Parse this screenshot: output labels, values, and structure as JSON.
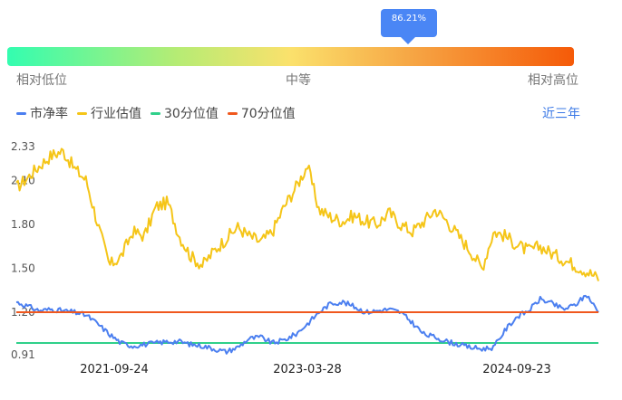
{
  "tooltip": {
    "value": "86.21%"
  },
  "gauge": {
    "label_low": "相对低位",
    "label_mid": "中等",
    "label_high": "相对高位",
    "percentile": 0.8621
  },
  "legend": {
    "items": [
      {
        "label": "市净率",
        "color": "#4b7ff0"
      },
      {
        "label": "行业估值",
        "color": "#f5c518"
      },
      {
        "label": "30分位值",
        "color": "#2fd08a"
      },
      {
        "label": "70分位值",
        "color": "#f0581e"
      }
    ]
  },
  "range_button": "近三年",
  "colors": {
    "pb": "#4b7ff0",
    "industry": "#f5c518",
    "p30": "#2fd08a",
    "p70": "#f0581e",
    "accent": "#4a86f5"
  },
  "chart_data": {
    "type": "line",
    "ylim": [
      0.91,
      2.33
    ],
    "yticks": [
      "2.33",
      "2.10",
      "1.80",
      "1.50",
      "1.20",
      "0.91"
    ],
    "ytick_values": [
      2.33,
      2.1,
      1.8,
      1.5,
      1.2,
      0.91
    ],
    "xticks": [
      "2021-09-24",
      "2023-03-28",
      "2024-09-23"
    ],
    "series": [
      {
        "name": "市净率",
        "key": "pb",
        "x": [
          "2021-03",
          "2021-04",
          "2021-05",
          "2021-06",
          "2021-07",
          "2021-08",
          "2021-09",
          "2021-10",
          "2021-11",
          "2021-12",
          "2022-01",
          "2022-02",
          "2022-03",
          "2022-04",
          "2022-05",
          "2022-06",
          "2022-07",
          "2022-08",
          "2022-09",
          "2022-10",
          "2022-11",
          "2022-12",
          "2023-01",
          "2023-02",
          "2023-03",
          "2023-04",
          "2023-05",
          "2023-06",
          "2023-07",
          "2023-08",
          "2023-09",
          "2023-10",
          "2023-11",
          "2023-12",
          "2024-01",
          "2024-02",
          "2024-03",
          "2024-04",
          "2024-05",
          "2024-06",
          "2024-07",
          "2024-08",
          "2024-09",
          "2024-10",
          "2024-11",
          "2024-12",
          "2025-01",
          "2025-02",
          "2025-03",
          "2025-04",
          "2025-05"
        ],
        "values": [
          1.27,
          1.24,
          1.21,
          1.22,
          1.21,
          1.2,
          1.18,
          1.12,
          1.05,
          0.99,
          0.97,
          0.98,
          0.99,
          1.0,
          1.0,
          0.98,
          0.97,
          0.95,
          0.93,
          0.96,
          1.02,
          1.03,
          0.99,
          1.01,
          1.05,
          1.12,
          1.2,
          1.26,
          1.27,
          1.24,
          1.2,
          1.21,
          1.22,
          1.2,
          1.13,
          1.05,
          1.03,
          1.0,
          0.98,
          0.96,
          0.95,
          0.96,
          1.08,
          1.17,
          1.21,
          1.29,
          1.26,
          1.22,
          1.25,
          1.32,
          1.2
        ]
      },
      {
        "name": "行业估值",
        "key": "industry",
        "x": [
          "2021-03",
          "2021-04",
          "2021-05",
          "2021-06",
          "2021-07",
          "2021-08",
          "2021-09",
          "2021-10",
          "2021-11",
          "2021-12",
          "2022-01",
          "2022-02",
          "2022-03",
          "2022-04",
          "2022-05",
          "2022-06",
          "2022-07",
          "2022-08",
          "2022-09",
          "2022-10",
          "2022-11",
          "2022-12",
          "2023-01",
          "2023-02",
          "2023-03",
          "2023-04",
          "2023-05",
          "2023-06",
          "2023-07",
          "2023-08",
          "2023-09",
          "2023-10",
          "2023-11",
          "2023-12",
          "2024-01",
          "2024-02",
          "2024-03",
          "2024-04",
          "2024-05",
          "2024-06",
          "2024-07",
          "2024-08",
          "2024-09",
          "2024-10",
          "2024-11",
          "2024-12",
          "2025-01",
          "2025-02",
          "2025-03",
          "2025-04",
          "2025-05"
        ],
        "values": [
          2.05,
          2.12,
          2.2,
          2.27,
          2.3,
          2.18,
          2.1,
          1.8,
          1.52,
          1.58,
          1.75,
          1.72,
          1.92,
          1.95,
          1.72,
          1.58,
          1.52,
          1.62,
          1.7,
          1.78,
          1.72,
          1.68,
          1.75,
          1.92,
          2.05,
          2.2,
          1.9,
          1.85,
          1.82,
          1.86,
          1.82,
          1.8,
          1.88,
          1.8,
          1.75,
          1.82,
          1.9,
          1.82,
          1.72,
          1.62,
          1.5,
          1.75,
          1.72,
          1.66,
          1.62,
          1.65,
          1.6,
          1.56,
          1.52,
          1.48,
          1.43
        ]
      },
      {
        "name": "30分位值",
        "key": "p30",
        "constant": 0.99
      },
      {
        "name": "70分位值",
        "key": "p70",
        "constant": 1.2
      }
    ]
  }
}
